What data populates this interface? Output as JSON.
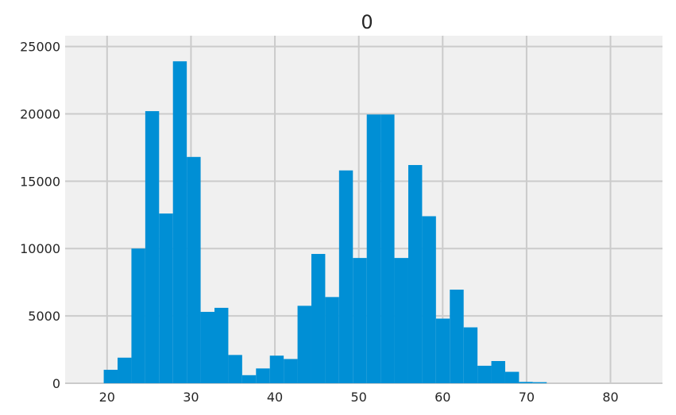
{
  "chart_data": {
    "type": "bar",
    "title": "0",
    "xlabel": "",
    "ylabel": "",
    "xlim": [
      15,
      86.2
    ],
    "ylim": [
      0,
      25800
    ],
    "grid": true,
    "bar_color": "#008fd5",
    "background_color": "#f0f0f0",
    "grid_color": "#cbcbcb",
    "x_ticks": [
      20,
      30,
      40,
      50,
      60,
      70,
      80
    ],
    "y_ticks": [
      0,
      5000,
      10000,
      15000,
      20000,
      25000
    ],
    "bins": [
      {
        "x0": 19.6,
        "x1": 21.25,
        "value": 1000
      },
      {
        "x0": 21.25,
        "x1": 22.9,
        "value": 1900
      },
      {
        "x0": 22.9,
        "x1": 24.55,
        "value": 10000
      },
      {
        "x0": 24.55,
        "x1": 26.2,
        "value": 20200
      },
      {
        "x0": 26.2,
        "x1": 27.85,
        "value": 12600
      },
      {
        "x0": 27.85,
        "x1": 29.5,
        "value": 23900
      },
      {
        "x0": 29.5,
        "x1": 31.15,
        "value": 16800
      },
      {
        "x0": 31.15,
        "x1": 32.8,
        "value": 5300
      },
      {
        "x0": 32.8,
        "x1": 34.45,
        "value": 5600
      },
      {
        "x0": 34.45,
        "x1": 36.1,
        "value": 2100
      },
      {
        "x0": 36.1,
        "x1": 37.75,
        "value": 600
      },
      {
        "x0": 37.75,
        "x1": 39.4,
        "value": 1100
      },
      {
        "x0": 39.4,
        "x1": 41.05,
        "value": 2050
      },
      {
        "x0": 41.05,
        "x1": 42.7,
        "value": 1800
      },
      {
        "x0": 42.7,
        "x1": 44.35,
        "value": 5750
      },
      {
        "x0": 44.35,
        "x1": 46.0,
        "value": 9600
      },
      {
        "x0": 46.0,
        "x1": 47.65,
        "value": 6400
      },
      {
        "x0": 47.65,
        "x1": 49.3,
        "value": 15800
      },
      {
        "x0": 49.3,
        "x1": 50.95,
        "value": 9300
      },
      {
        "x0": 50.95,
        "x1": 52.6,
        "value": 19950
      },
      {
        "x0": 52.6,
        "x1": 54.25,
        "value": 19950
      },
      {
        "x0": 54.25,
        "x1": 55.9,
        "value": 9300
      },
      {
        "x0": 55.9,
        "x1": 57.55,
        "value": 16200
      },
      {
        "x0": 57.55,
        "x1": 59.2,
        "value": 12400
      },
      {
        "x0": 59.2,
        "x1": 60.85,
        "value": 4800
      },
      {
        "x0": 60.85,
        "x1": 62.5,
        "value": 6950
      },
      {
        "x0": 62.5,
        "x1": 64.15,
        "value": 4150
      },
      {
        "x0": 64.15,
        "x1": 65.8,
        "value": 1300
      },
      {
        "x0": 65.8,
        "x1": 67.45,
        "value": 1650
      },
      {
        "x0": 67.45,
        "x1": 69.1,
        "value": 850
      },
      {
        "x0": 69.1,
        "x1": 70.75,
        "value": 100
      },
      {
        "x0": 70.75,
        "x1": 72.4,
        "value": 80
      },
      {
        "x0": 72.4,
        "x1": 74.05,
        "value": 0
      }
    ]
  }
}
